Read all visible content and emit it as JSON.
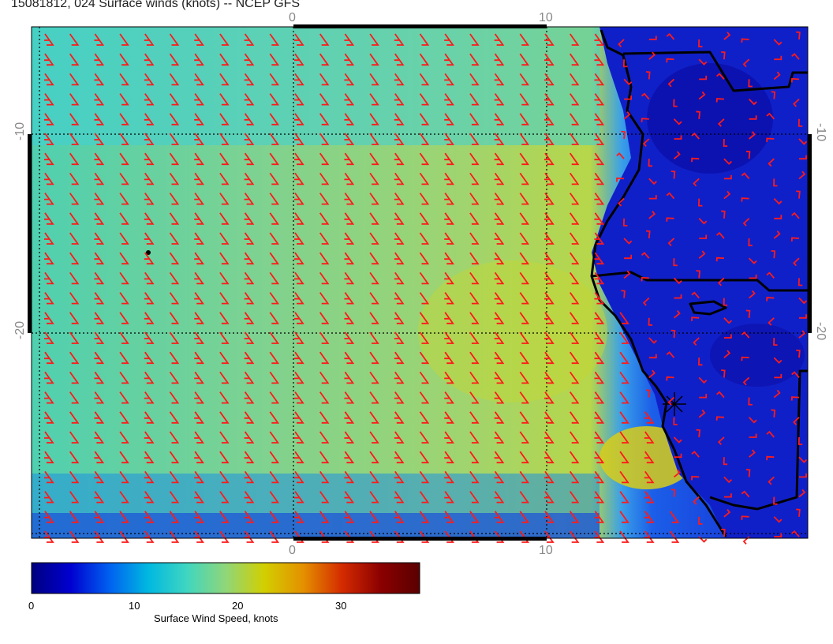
{
  "title": "15081812, 024 Surface winds (knots) -- NCEP GFS",
  "axis_labels": {
    "top": [
      "0",
      "10"
    ],
    "bottom": [
      "0",
      "10"
    ],
    "left": [
      "-10",
      "-20"
    ],
    "right": [
      "-10",
      "-20"
    ]
  },
  "colorbar": {
    "title": "Surface Wind Speed, knots",
    "ticks": [
      "0",
      "10",
      "20",
      "30"
    ],
    "range": [
      0,
      37.5
    ],
    "colors": [
      "#00007f",
      "#0000d0",
      "#0060f0",
      "#00b8e0",
      "#3fd6c0",
      "#8fd67a",
      "#d2cf00",
      "#e49000",
      "#d42b00",
      "#8b0000",
      "#5a0000"
    ]
  },
  "colors": {
    "barb": "#ff1a1a",
    "coast": "#000000",
    "grid": "#000000",
    "land": "#1018c8"
  },
  "map": {
    "grid_lines": "dotted",
    "feature_icon": "asterisk-marker-icon"
  }
}
